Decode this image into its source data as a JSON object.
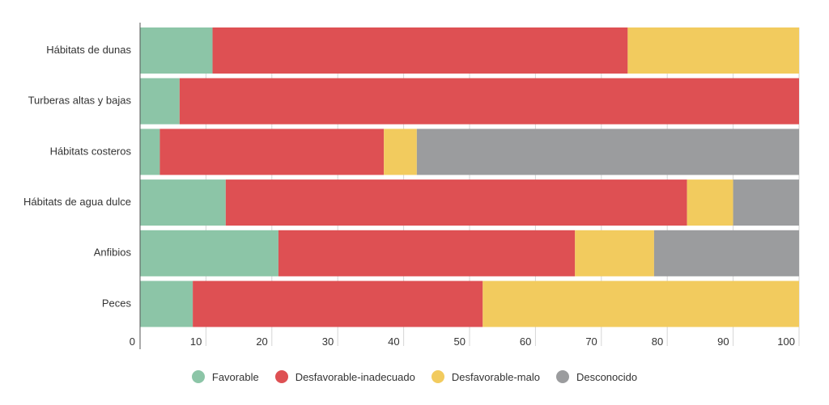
{
  "chart_data": {
    "type": "bar",
    "orientation": "horizontal",
    "stacked": true,
    "title": "",
    "xlabel": "",
    "ylabel": "",
    "xlim": [
      0,
      100
    ],
    "x_ticks": [
      0,
      10,
      20,
      30,
      40,
      50,
      60,
      70,
      80,
      90,
      100
    ],
    "grid": true,
    "legend_position": "bottom",
    "categories": [
      "Hábitats de dunas",
      "Turberas altas y bajas",
      "Hábitats costeros",
      "Hábitats de agua dulce",
      "Anfibios",
      "Peces"
    ],
    "series": [
      {
        "name": "Favorable",
        "color": "#8cc5a7",
        "values": [
          11,
          6,
          3,
          13,
          21,
          8
        ]
      },
      {
        "name": "Desfavorable-inadecuado",
        "color": "#de5053",
        "values": [
          63,
          94,
          34,
          70,
          45,
          44
        ]
      },
      {
        "name": "Desfavorable-malo",
        "color": "#f2cb5e",
        "values": [
          26,
          0,
          5,
          7,
          12,
          48
        ]
      },
      {
        "name": "Desconocido",
        "color": "#9b9c9e",
        "values": [
          0,
          0,
          58,
          10,
          22,
          0
        ]
      }
    ]
  }
}
